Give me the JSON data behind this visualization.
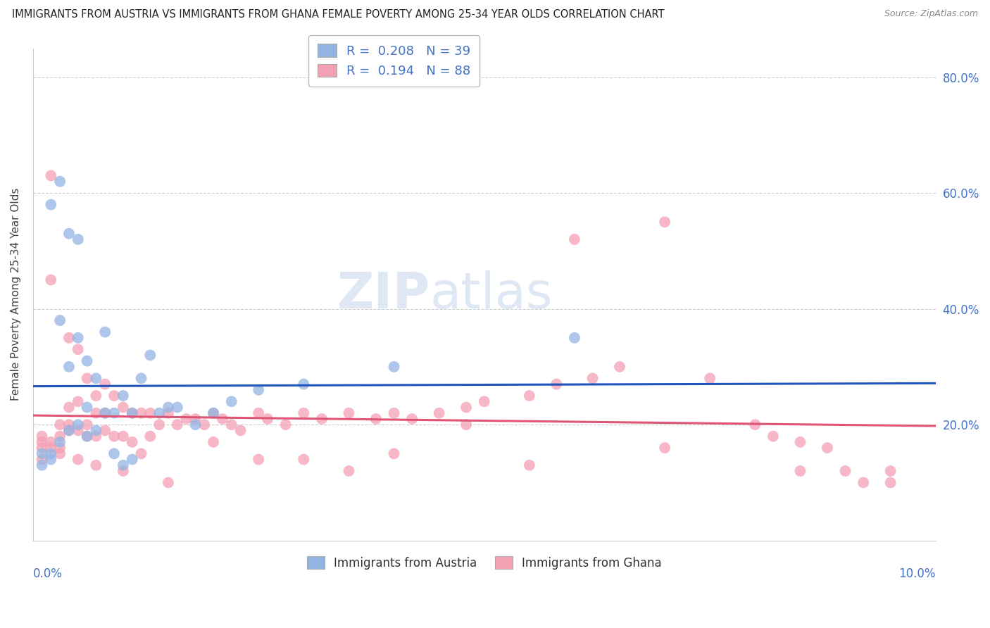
{
  "title": "IMMIGRANTS FROM AUSTRIA VS IMMIGRANTS FROM GHANA FEMALE POVERTY AMONG 25-34 YEAR OLDS CORRELATION CHART",
  "source": "Source: ZipAtlas.com",
  "ylabel": "Female Poverty Among 25-34 Year Olds",
  "austria_R": "0.208",
  "austria_N": "39",
  "ghana_R": "0.194",
  "ghana_N": "88",
  "austria_color": "#92b4e3",
  "ghana_color": "#f4a0b4",
  "austria_line_color": "#2255bb",
  "ghana_line_color": "#e05575",
  "austria_scatter_x": [
    0.001,
    0.001,
    0.002,
    0.002,
    0.002,
    0.003,
    0.003,
    0.003,
    0.004,
    0.004,
    0.004,
    0.005,
    0.005,
    0.005,
    0.006,
    0.006,
    0.006,
    0.007,
    0.007,
    0.008,
    0.008,
    0.009,
    0.009,
    0.01,
    0.01,
    0.011,
    0.011,
    0.012,
    0.013,
    0.014,
    0.015,
    0.016,
    0.018,
    0.02,
    0.022,
    0.025,
    0.03,
    0.04,
    0.06
  ],
  "austria_scatter_y": [
    0.15,
    0.13,
    0.58,
    0.15,
    0.14,
    0.62,
    0.38,
    0.17,
    0.53,
    0.3,
    0.19,
    0.52,
    0.35,
    0.2,
    0.31,
    0.23,
    0.18,
    0.28,
    0.19,
    0.36,
    0.22,
    0.22,
    0.15,
    0.25,
    0.13,
    0.22,
    0.14,
    0.28,
    0.32,
    0.22,
    0.23,
    0.23,
    0.2,
    0.22,
    0.24,
    0.26,
    0.27,
    0.3,
    0.35
  ],
  "ghana_scatter_x": [
    0.001,
    0.001,
    0.001,
    0.002,
    0.002,
    0.002,
    0.003,
    0.003,
    0.003,
    0.004,
    0.004,
    0.004,
    0.005,
    0.005,
    0.005,
    0.006,
    0.006,
    0.007,
    0.007,
    0.007,
    0.008,
    0.008,
    0.009,
    0.009,
    0.01,
    0.01,
    0.011,
    0.011,
    0.012,
    0.013,
    0.013,
    0.014,
    0.015,
    0.016,
    0.017,
    0.018,
    0.019,
    0.02,
    0.021,
    0.022,
    0.023,
    0.025,
    0.026,
    0.028,
    0.03,
    0.032,
    0.035,
    0.038,
    0.04,
    0.042,
    0.045,
    0.048,
    0.05,
    0.055,
    0.058,
    0.06,
    0.065,
    0.07,
    0.075,
    0.08,
    0.082,
    0.085,
    0.088,
    0.09,
    0.092,
    0.095,
    0.062,
    0.048,
    0.035,
    0.025,
    0.015,
    0.01,
    0.007,
    0.005,
    0.003,
    0.002,
    0.001,
    0.004,
    0.006,
    0.008,
    0.012,
    0.02,
    0.03,
    0.04,
    0.055,
    0.07,
    0.085,
    0.095
  ],
  "ghana_scatter_y": [
    0.18,
    0.16,
    0.14,
    0.63,
    0.45,
    0.17,
    0.2,
    0.18,
    0.15,
    0.35,
    0.23,
    0.19,
    0.33,
    0.24,
    0.19,
    0.28,
    0.2,
    0.25,
    0.22,
    0.18,
    0.27,
    0.19,
    0.25,
    0.18,
    0.23,
    0.18,
    0.22,
    0.17,
    0.22,
    0.22,
    0.18,
    0.2,
    0.22,
    0.2,
    0.21,
    0.21,
    0.2,
    0.22,
    0.21,
    0.2,
    0.19,
    0.22,
    0.21,
    0.2,
    0.22,
    0.21,
    0.22,
    0.21,
    0.22,
    0.21,
    0.22,
    0.23,
    0.24,
    0.25,
    0.27,
    0.52,
    0.3,
    0.55,
    0.28,
    0.2,
    0.18,
    0.17,
    0.16,
    0.12,
    0.1,
    0.1,
    0.28,
    0.2,
    0.12,
    0.14,
    0.1,
    0.12,
    0.13,
    0.14,
    0.16,
    0.16,
    0.17,
    0.2,
    0.18,
    0.22,
    0.15,
    0.17,
    0.14,
    0.15,
    0.13,
    0.16,
    0.12,
    0.12
  ]
}
